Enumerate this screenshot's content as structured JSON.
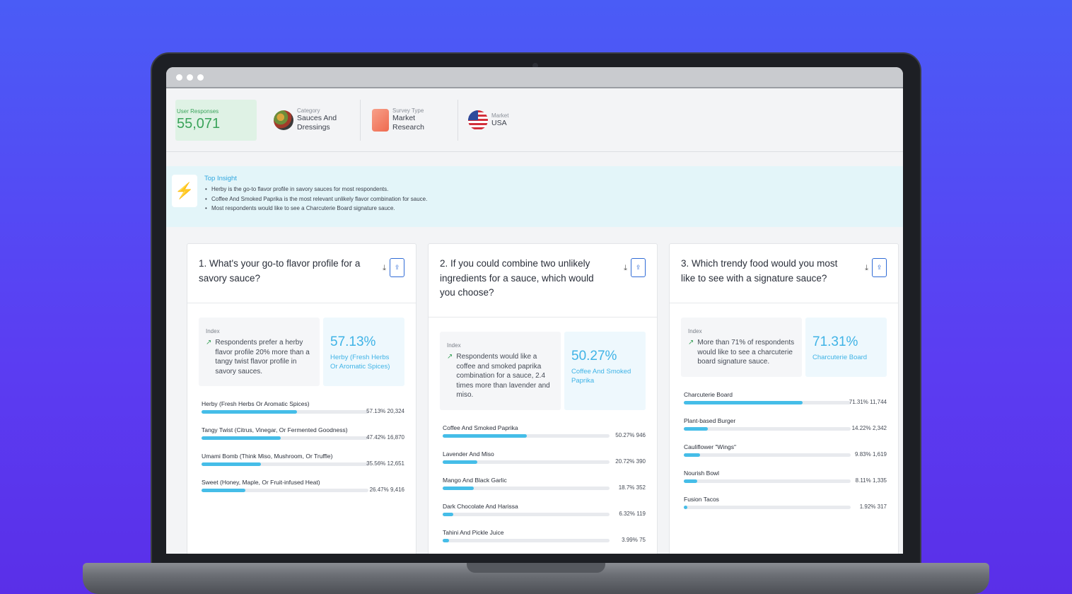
{
  "header": {
    "user_responses_label": "User Responses",
    "user_responses_value": "55,071",
    "category_label": "Category",
    "category_value": "Sauces And Dressings",
    "survey_type_label": "Survey Type",
    "survey_type_value": "Market Research",
    "market_label": "Market",
    "market_value": "USA"
  },
  "insight": {
    "title": "Top Insight",
    "items": [
      "Herby is the go-to flavor profile in savory sauces for most respondents.",
      "Coffee And Smoked Paprika is the most relevant unlikely flavor combination for sauce.",
      "Most respondents would like to see a Charcuterie Board signature sauce."
    ]
  },
  "cards": [
    {
      "question": "1. What's your go-to flavor profile for a savory sauce?",
      "index_label": "Index",
      "index_text": "Respondents prefer a herby flavor profile 20% more than a tangy twist flavor profile in savory sauces.",
      "top_pct": "57.13%",
      "top_name": "Herby (Fresh Herbs Or Aromatic Spices)",
      "options": [
        {
          "label": "Herby (Fresh Herbs Or Aromatic Spices)",
          "pct": "57.13%",
          "count": "20,324",
          "fill": 0.5713
        },
        {
          "label": "Tangy Twist (Citrus, Vinegar, Or Fermented Goodness)",
          "pct": "47.42%",
          "count": "16,870",
          "fill": 0.4742
        },
        {
          "label": "Umami Bomb (Think Miso, Mushroom, Or Truffle)",
          "pct": "35.56%",
          "count": "12,651",
          "fill": 0.3556
        },
        {
          "label": "Sweet (Honey, Maple, Or Fruit-infused Heat)",
          "pct": "26.47%",
          "count": "9,416",
          "fill": 0.2647
        }
      ]
    },
    {
      "question": "2. If you could combine two unlikely ingredients for a sauce, which would you choose?",
      "index_label": "Index",
      "index_text": "Respondents would like a coffee and smoked paprika combination for a sauce, 2.4 times more than lavender and miso.",
      "top_pct": "50.27%",
      "top_name": "Coffee And Smoked Paprika",
      "options": [
        {
          "label": "Coffee And Smoked Paprika",
          "pct": "50.27%",
          "count": "946",
          "fill": 0.5027
        },
        {
          "label": "Lavender And Miso",
          "pct": "20.72%",
          "count": "390",
          "fill": 0.2072
        },
        {
          "label": "Mango And Black Garlic",
          "pct": "18.7%",
          "count": "352",
          "fill": 0.187
        },
        {
          "label": "Dark Chocolate And Harissa",
          "pct": "6.32%",
          "count": "119",
          "fill": 0.0632
        },
        {
          "label": "Tahini And Pickle Juice",
          "pct": "3.99%",
          "count": "75",
          "fill": 0.0399
        }
      ]
    },
    {
      "question": "3. Which trendy food would you most like to see with a signature sauce?",
      "index_label": "Index",
      "index_text": "More than 71% of respondents would like to see a charcuterie board signature sauce.",
      "top_pct": "71.31%",
      "top_name": "Charcuterie Board",
      "options": [
        {
          "label": "Charcuterie Board",
          "pct": "71.31%",
          "count": "11,744",
          "fill": 0.7131
        },
        {
          "label": "Plant-based Burger",
          "pct": "14.22%",
          "count": "2,342",
          "fill": 0.1422
        },
        {
          "label": "Cauliflower \"Wings\"",
          "pct": "9.83%",
          "count": "1,619",
          "fill": 0.0983
        },
        {
          "label": "Nourish Bowl",
          "pct": "8.11%",
          "count": "1,335",
          "fill": 0.0811
        },
        {
          "label": "Fusion Tacos",
          "pct": "1.92%",
          "count": "317",
          "fill": 0.0192
        }
      ]
    }
  ]
}
